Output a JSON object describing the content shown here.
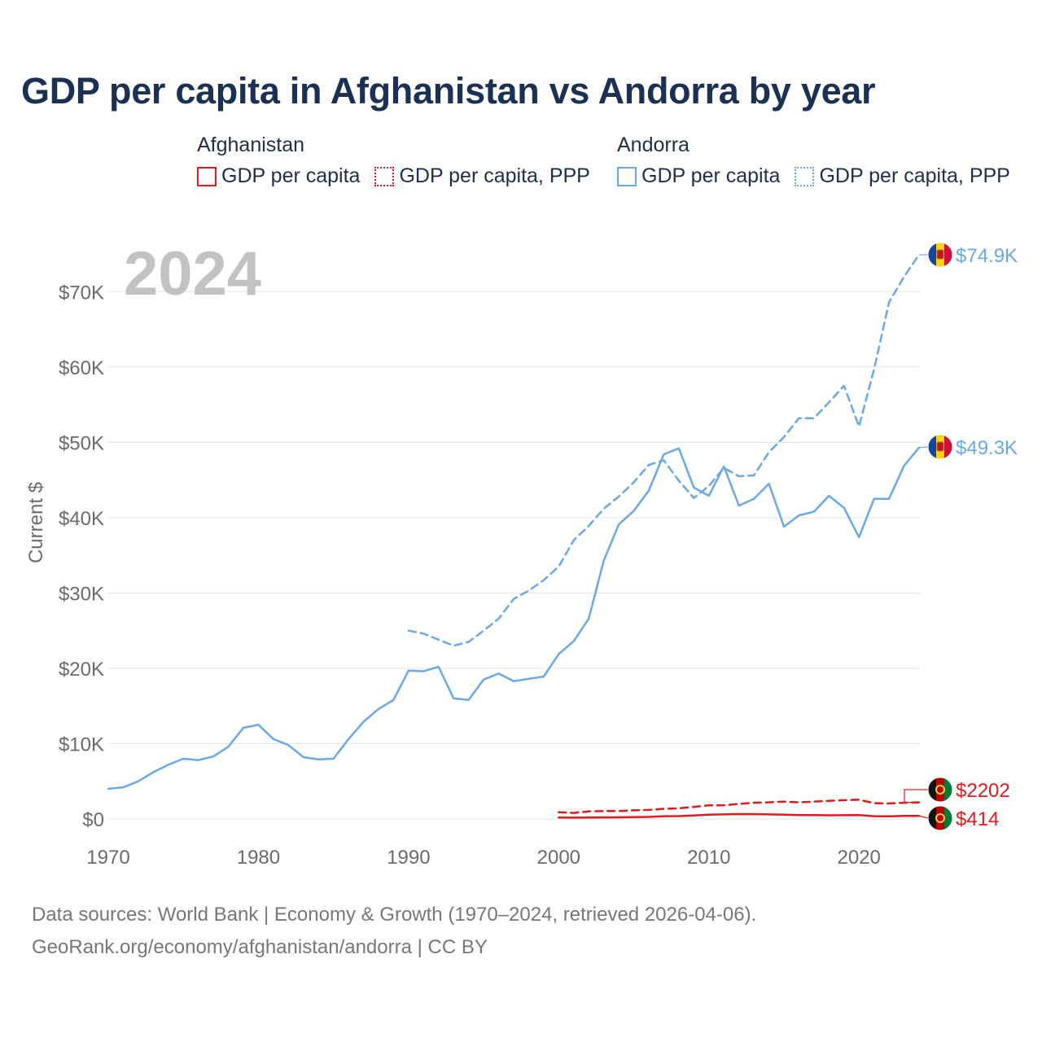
{
  "title": "GDP per capita in Afghanistan vs Andorra by year",
  "legend": {
    "groups": [
      {
        "name": "Afghanistan",
        "items": [
          "GDP per capita",
          "GDP per capita, PPP"
        ]
      },
      {
        "name": "Andorra",
        "items": [
          "GDP per capita",
          "GDP per capita, PPP"
        ]
      }
    ]
  },
  "colors": {
    "afghanistan": "#e31a1c",
    "andorra": "#6aa8e8",
    "grid": "#e4e4e4",
    "axis_text": "#6b6b6b",
    "year_watermark": "#c2c2c2"
  },
  "chart_data": {
    "type": "line",
    "title": "GDP per capita in Afghanistan vs Andorra by year",
    "year_label": "2024",
    "xlabel": "",
    "ylabel": "Current $",
    "xlim": [
      1970,
      2024
    ],
    "ylim": [
      0,
      75000
    ],
    "x_ticks": [
      1970,
      1980,
      1990,
      2000,
      2010,
      2020
    ],
    "x_tick_labels": [
      "1970",
      "1980",
      "1990",
      "2000",
      "2010",
      "2020"
    ],
    "y_ticks": [
      0,
      10000,
      20000,
      30000,
      40000,
      50000,
      60000,
      70000
    ],
    "y_tick_labels": [
      "$0",
      "$10K",
      "$20K",
      "$30K",
      "$40K",
      "$50K",
      "$60K",
      "$70K"
    ],
    "series": [
      {
        "name": "Andorra GDP per capita",
        "country": "Andorra",
        "style": "solid",
        "color": "#6aa8e8",
        "x": [
          1970,
          1971,
          1972,
          1973,
          1974,
          1975,
          1976,
          1977,
          1978,
          1979,
          1980,
          1981,
          1982,
          1983,
          1984,
          1985,
          1986,
          1987,
          1988,
          1989,
          1990,
          1991,
          1992,
          1993,
          1994,
          1995,
          1996,
          1997,
          1998,
          1999,
          2000,
          2001,
          2002,
          2003,
          2004,
          2005,
          2006,
          2007,
          2008,
          2009,
          2010,
          2011,
          2012,
          2013,
          2014,
          2015,
          2016,
          2017,
          2018,
          2019,
          2020,
          2021,
          2022,
          2023,
          2024
        ],
        "values": [
          4000,
          4200,
          5000,
          6200,
          7200,
          8000,
          7800,
          8300,
          9600,
          12100,
          12500,
          10600,
          9800,
          8200,
          7900,
          8000,
          10600,
          12900,
          14600,
          15800,
          19700,
          19600,
          20200,
          16000,
          15800,
          18500,
          19300,
          18300,
          18600,
          18900,
          21900,
          23600,
          26600,
          34300,
          39100,
          40900,
          43600,
          48400,
          49200,
          44000,
          42900,
          46800,
          41600,
          42500,
          44500,
          38800,
          40300,
          40800,
          42900,
          41300,
          37400,
          42500,
          42500,
          46900,
          49300
        ],
        "end_label": "$49.3K"
      },
      {
        "name": "Andorra GDP per capita, PPP",
        "country": "Andorra",
        "style": "dashed",
        "color": "#6aa8e8",
        "x": [
          1990,
          1991,
          1992,
          1993,
          1994,
          1995,
          1996,
          1997,
          1998,
          1999,
          2000,
          2001,
          2002,
          2003,
          2004,
          2005,
          2006,
          2007,
          2008,
          2009,
          2010,
          2011,
          2012,
          2013,
          2014,
          2015,
          2016,
          2017,
          2018,
          2019,
          2020,
          2021,
          2022,
          2023,
          2024
        ],
        "values": [
          25000,
          24600,
          23800,
          23000,
          23500,
          25000,
          26600,
          29200,
          30300,
          31700,
          33500,
          37000,
          38900,
          41200,
          42800,
          44700,
          47000,
          47600,
          44900,
          42600,
          44200,
          46600,
          45500,
          45600,
          48700,
          50700,
          53200,
          53200,
          55300,
          57500,
          52100,
          59700,
          68600,
          72000,
          74900
        ],
        "end_label": "$74.9K"
      },
      {
        "name": "Afghanistan GDP per capita",
        "country": "Afghanistan",
        "style": "solid",
        "color": "#e31a1c",
        "x": [
          2000,
          2001,
          2002,
          2003,
          2004,
          2005,
          2006,
          2007,
          2008,
          2009,
          2010,
          2011,
          2012,
          2013,
          2014,
          2015,
          2016,
          2017,
          2018,
          2019,
          2020,
          2021,
          2022,
          2023,
          2024
        ],
        "values": [
          180,
          170,
          190,
          210,
          220,
          250,
          270,
          370,
          380,
          450,
          560,
          610,
          650,
          640,
          610,
          570,
          520,
          520,
          490,
          500,
          510,
          370,
          360,
          410,
          414
        ],
        "end_label": "$414"
      },
      {
        "name": "Afghanistan GDP per capita, PPP",
        "country": "Afghanistan",
        "style": "dashed",
        "color": "#e31a1c",
        "x": [
          2000,
          2001,
          2002,
          2003,
          2004,
          2005,
          2006,
          2007,
          2008,
          2009,
          2010,
          2011,
          2012,
          2013,
          2014,
          2015,
          2016,
          2017,
          2018,
          2019,
          2020,
          2021,
          2022,
          2023,
          2024
        ],
        "values": [
          900,
          800,
          1000,
          1050,
          1050,
          1150,
          1200,
          1350,
          1400,
          1600,
          1800,
          1800,
          2000,
          2150,
          2200,
          2300,
          2200,
          2300,
          2400,
          2500,
          2550,
          2100,
          2050,
          2150,
          2202
        ],
        "end_label": "$2202"
      }
    ]
  },
  "footer": {
    "line1": "Data sources: World Bank | Economy & Growth (1970–2024, retrieved 2026-04-06).",
    "line2": "GeoRank.org/economy/afghanistan/andorra | CC BY"
  }
}
